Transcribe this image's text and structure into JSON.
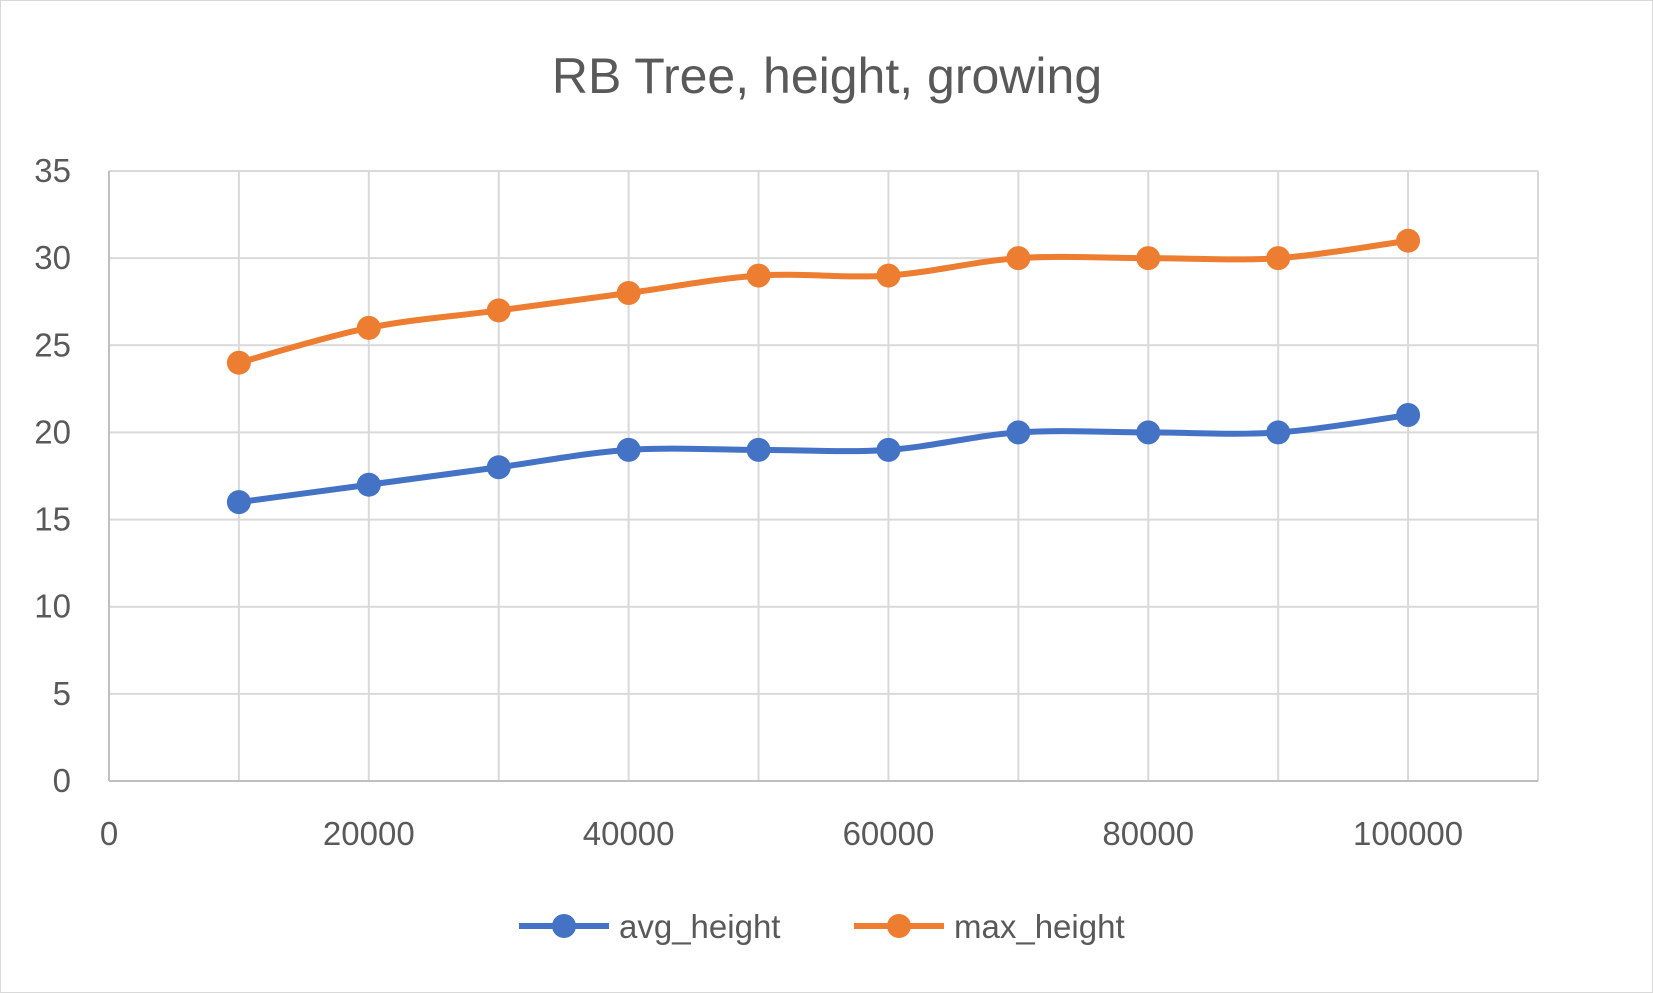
{
  "chart_data": {
    "type": "line",
    "title": "RB Tree, height, growing",
    "xlabel": "",
    "ylabel": "",
    "xlim": [
      0,
      110000
    ],
    "ylim": [
      0,
      35
    ],
    "x_ticks": [
      0,
      20000,
      40000,
      60000,
      80000,
      100000
    ],
    "x_tick_labels": [
      "0",
      "20000",
      "40000",
      "60000",
      "80000",
      "100000"
    ],
    "x_grid": [
      0,
      10000,
      20000,
      30000,
      40000,
      50000,
      60000,
      70000,
      80000,
      90000,
      100000,
      110000
    ],
    "y_ticks": [
      0,
      5,
      10,
      15,
      20,
      25,
      30,
      35
    ],
    "y_tick_labels": [
      "0",
      "5",
      "10",
      "15",
      "20",
      "25",
      "30",
      "35"
    ],
    "grid": true,
    "smooth": true,
    "legend_position": "bottom",
    "x": [
      10000,
      20000,
      30000,
      40000,
      50000,
      60000,
      70000,
      80000,
      90000,
      100000
    ],
    "series": [
      {
        "name": "avg_height",
        "color": "#4472C4",
        "values": [
          16,
          17,
          18,
          19,
          19,
          19,
          20,
          20,
          20,
          21
        ]
      },
      {
        "name": "max_height",
        "color": "#ED7D31",
        "values": [
          24,
          26,
          27,
          28,
          29,
          29,
          30,
          30,
          30,
          31
        ]
      }
    ]
  }
}
